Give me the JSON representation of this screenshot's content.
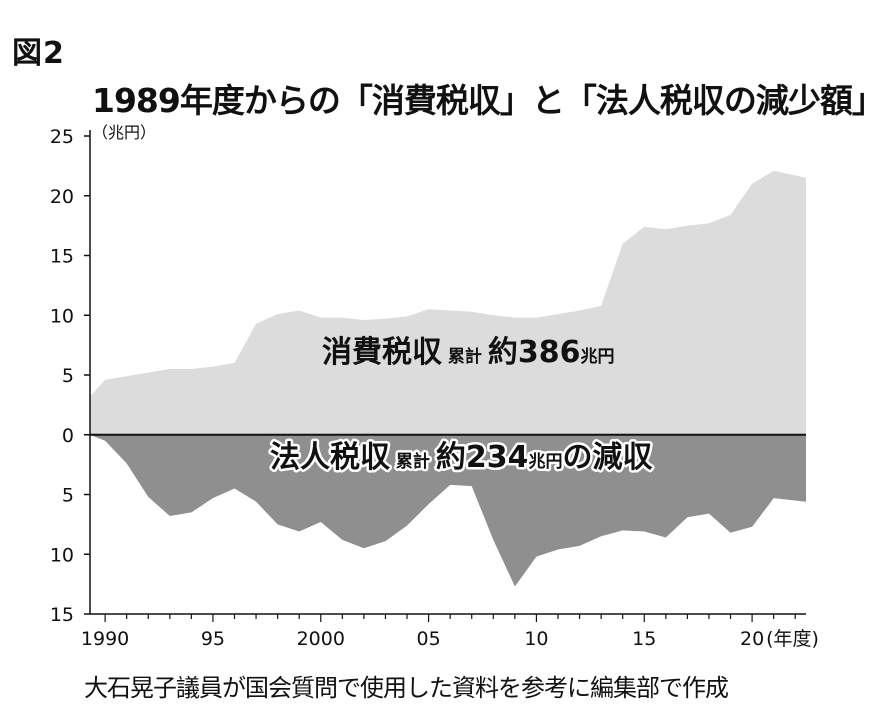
{
  "figure_label": "図2",
  "chart_data": {
    "type": "area",
    "title": "1989年度からの「消費税収」と「法人税収の減少額」",
    "y_unit": "（兆円）",
    "x_unit": "(年度)",
    "ylim": [
      -15,
      25
    ],
    "y_ticks": [
      {
        "value": 25,
        "label": "25"
      },
      {
        "value": 20,
        "label": "20"
      },
      {
        "value": 15,
        "label": "15"
      },
      {
        "value": 10,
        "label": "10"
      },
      {
        "value": 5,
        "label": "5"
      },
      {
        "value": 0,
        "label": "0"
      },
      {
        "value": -5,
        "label": "5"
      },
      {
        "value": -10,
        "label": "10"
      },
      {
        "value": -15,
        "label": "15"
      }
    ],
    "x_ticks": [
      {
        "value": 1990,
        "label": "1990"
      },
      {
        "value": 1995,
        "label": "95"
      },
      {
        "value": 2000,
        "label": "2000"
      },
      {
        "value": 2005,
        "label": "05"
      },
      {
        "value": 2010,
        "label": "10"
      },
      {
        "value": 2015,
        "label": "15"
      },
      {
        "value": 2020,
        "label": "20"
      }
    ],
    "xlim": [
      1989.3,
      2022.5
    ],
    "series": [
      {
        "name": "消費税収",
        "color": "#dcdcdc",
        "label_main": "消費税収",
        "label_small": "累計",
        "label_total": "約386",
        "label_unit": "兆円",
        "label_suffix": "",
        "x": [
          1989.3,
          1990,
          1991,
          1992,
          1993,
          1994,
          1995,
          1996,
          1997,
          1998,
          1999,
          2000,
          2001,
          2002,
          2003,
          2004,
          2005,
          2006,
          2007,
          2008,
          2009,
          2010,
          2011,
          2012,
          2013,
          2014,
          2015,
          2016,
          2017,
          2018,
          2019,
          2020,
          2021,
          2022.5
        ],
        "values": [
          3.2,
          4.6,
          4.9,
          5.2,
          5.5,
          5.5,
          5.7,
          6.0,
          9.3,
          10.1,
          10.4,
          9.8,
          9.8,
          9.6,
          9.7,
          9.9,
          10.5,
          10.4,
          10.3,
          10.0,
          9.8,
          9.8,
          10.1,
          10.4,
          10.8,
          16.0,
          17.4,
          17.2,
          17.5,
          17.7,
          18.4,
          21.0,
          22.1,
          21.5
        ]
      },
      {
        "name": "法人税収の減少額",
        "color": "#8f8f8f",
        "label_main": "法人税収",
        "label_small": "累計",
        "label_total": "約234",
        "label_unit": "兆円",
        "label_suffix": "の減収",
        "x": [
          1989.3,
          1990,
          1991,
          1992,
          1993,
          1994,
          1995,
          1996,
          1997,
          1998,
          1999,
          2000,
          2001,
          2002,
          2003,
          2004,
          2005,
          2006,
          2007,
          2008,
          2009,
          2010,
          2011,
          2012,
          2013,
          2014,
          2015,
          2016,
          2017,
          2018,
          2019,
          2020,
          2021,
          2022.5
        ],
        "values": [
          0.0,
          -0.5,
          -2.4,
          -5.2,
          -6.8,
          -6.5,
          -5.3,
          -4.5,
          -5.6,
          -7.5,
          -8.1,
          -7.3,
          -8.8,
          -9.5,
          -8.9,
          -7.6,
          -5.8,
          -4.2,
          -4.3,
          -8.8,
          -12.7,
          -10.2,
          -9.6,
          -9.3,
          -8.5,
          -8.0,
          -8.1,
          -8.6,
          -6.9,
          -6.6,
          -8.2,
          -7.7,
          -5.3,
          -5.6
        ]
      }
    ],
    "grid": false,
    "legend": "none"
  },
  "source": "大石晃子議員が国会質問で使用した資料を参考に編集部で作成"
}
